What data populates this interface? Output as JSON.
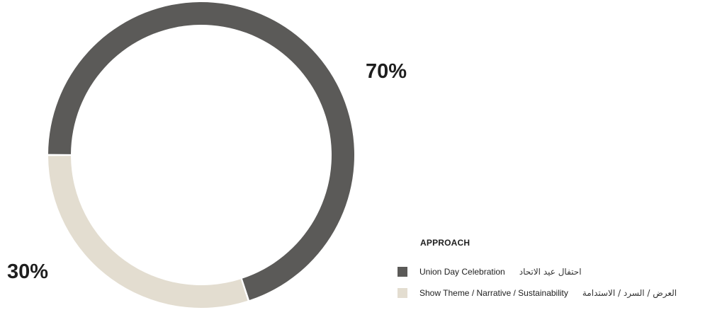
{
  "chart_data": {
    "type": "pie",
    "variant": "donut",
    "title": "",
    "slices": [
      {
        "label": "Union Day Celebration",
        "label_ar": "احتفال عيد الاتحاد",
        "value": 70,
        "value_label": "70%",
        "color": "#5b5a58"
      },
      {
        "label": "Show Theme / Narrative / Sustainability",
        "label_ar": "العرض / السرد / الاستدامة",
        "value": 30,
        "value_label": "30%",
        "color": "#e3ddd0"
      }
    ],
    "legend": {
      "title": "APPROACH",
      "placement": "bottom-right"
    }
  }
}
